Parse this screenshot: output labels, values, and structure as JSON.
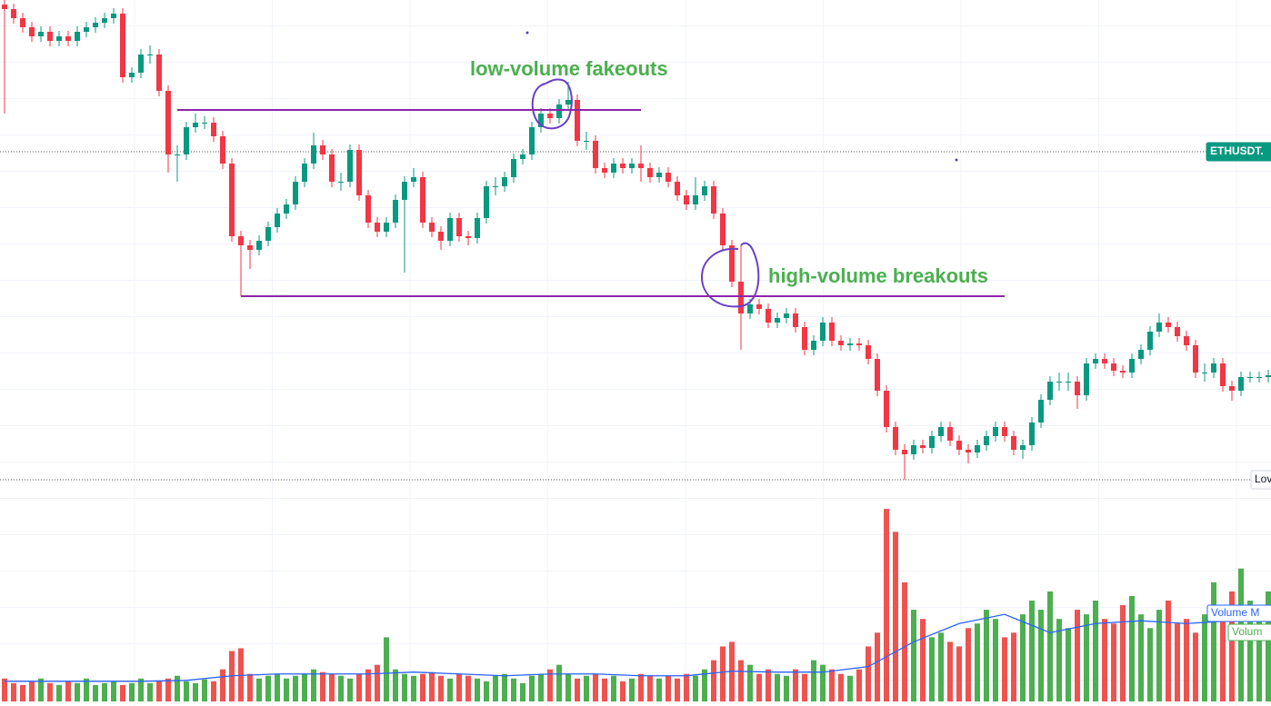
{
  "chart_data": {
    "type": "candlestick",
    "ylim": [
      0,
      540
    ],
    "up_color": "#089981",
    "down_color": "#f23645",
    "open": [
      535,
      530,
      520,
      510,
      500,
      505,
      495,
      500,
      495,
      505,
      510,
      515,
      520,
      525,
      455,
      460,
      480,
      480,
      440,
      370,
      370,
      400,
      405,
      405,
      390,
      360,
      280,
      270,
      265,
      275,
      290,
      305,
      315,
      340,
      360,
      380,
      370,
      340,
      340,
      375,
      325,
      295,
      285,
      295,
      320,
      340,
      345,
      295,
      285,
      275,
      300,
      280,
      278,
      300,
      335,
      335,
      345,
      365,
      370,
      400,
      415,
      410,
      425,
      430,
      385,
      385,
      355,
      350,
      360,
      355,
      360,
      355,
      345,
      350,
      340,
      325,
      315,
      325,
      335,
      305,
      270,
      230,
      195,
      205,
      200,
      185,
      190,
      195,
      180,
      155,
      165,
      185,
      165,
      160,
      162,
      160,
      145,
      110,
      70,
      45,
      40,
      50,
      47,
      60,
      70,
      55,
      45,
      42,
      50,
      60,
      70,
      60,
      45,
      50,
      75,
      100,
      120,
      120,
      120,
      105,
      140,
      145,
      140,
      132,
      130,
      145,
      155,
      175,
      185,
      180,
      170,
      160,
      130,
      130,
      140,
      115,
      110,
      125,
      125,
      125
    ],
    "high": [
      540,
      536,
      526,
      516,
      511,
      511,
      506,
      506,
      511,
      516,
      521,
      526,
      531,
      531,
      466,
      486,
      490,
      486,
      446,
      380,
      406,
      415,
      412,
      411,
      396,
      366,
      286,
      276,
      281,
      296,
      311,
      321,
      346,
      366,
      394,
      386,
      376,
      350,
      381,
      381,
      331,
      301,
      301,
      326,
      346,
      355,
      351,
      301,
      291,
      306,
      306,
      286,
      306,
      341,
      345,
      351,
      371,
      376,
      406,
      421,
      421,
      431,
      450,
      436,
      395,
      391,
      361,
      366,
      366,
      366,
      380,
      361,
      356,
      356,
      346,
      331,
      345,
      341,
      341,
      311,
      276,
      270,
      211,
      211,
      206,
      196,
      201,
      201,
      186,
      171,
      191,
      191,
      171,
      168,
      168,
      166,
      151,
      116,
      76,
      51,
      56,
      56,
      66,
      76,
      76,
      61,
      51,
      56,
      66,
      76,
      76,
      66,
      56,
      81,
      106,
      126,
      130,
      130,
      126,
      146,
      151,
      151,
      146,
      138,
      151,
      161,
      181,
      195,
      191,
      186,
      176,
      166,
      140,
      146,
      146,
      121,
      131,
      131,
      131,
      133
    ],
    "low": [
      415,
      514,
      504,
      494,
      494,
      489,
      489,
      489,
      489,
      499,
      504,
      509,
      514,
      449,
      449,
      454,
      470,
      434,
      350,
      340,
      364,
      394,
      398,
      384,
      354,
      274,
      214,
      244,
      259,
      269,
      284,
      299,
      309,
      334,
      354,
      364,
      334,
      330,
      334,
      319,
      289,
      279,
      279,
      289,
      240,
      334,
      289,
      279,
      265,
      269,
      274,
      270,
      272,
      294,
      325,
      329,
      339,
      359,
      364,
      394,
      404,
      404,
      419,
      379,
      375,
      349,
      344,
      344,
      349,
      349,
      340,
      339,
      339,
      334,
      319,
      309,
      309,
      319,
      299,
      264,
      224,
      155,
      189,
      194,
      179,
      179,
      184,
      174,
      149,
      149,
      159,
      159,
      154,
      154,
      154,
      139,
      104,
      64,
      39,
      12,
      34,
      41,
      41,
      54,
      49,
      39,
      30,
      36,
      44,
      54,
      54,
      39,
      35,
      44,
      69,
      94,
      110,
      110,
      90,
      99,
      134,
      134,
      126,
      124,
      124,
      139,
      149,
      169,
      174,
      164,
      154,
      124,
      120,
      124,
      109,
      99,
      104,
      119,
      119,
      119
    ],
    "close": [
      530,
      520,
      510,
      500,
      505,
      495,
      500,
      495,
      505,
      510,
      515,
      520,
      525,
      455,
      460,
      480,
      480,
      440,
      370,
      370,
      400,
      405,
      405,
      390,
      360,
      280,
      270,
      265,
      275,
      290,
      305,
      315,
      340,
      360,
      380,
      370,
      340,
      340,
      375,
      325,
      295,
      285,
      295,
      320,
      340,
      345,
      295,
      285,
      275,
      300,
      280,
      278,
      300,
      335,
      335,
      345,
      365,
      370,
      400,
      415,
      410,
      425,
      430,
      385,
      385,
      355,
      350,
      360,
      355,
      360,
      355,
      345,
      350,
      340,
      325,
      315,
      325,
      335,
      305,
      270,
      230,
      195,
      205,
      200,
      185,
      190,
      195,
      180,
      155,
      165,
      185,
      165,
      160,
      162,
      160,
      145,
      110,
      70,
      45,
      40,
      50,
      47,
      60,
      70,
      55,
      45,
      42,
      50,
      60,
      70,
      60,
      45,
      50,
      75,
      100,
      120,
      120,
      120,
      105,
      140,
      145,
      140,
      132,
      130,
      145,
      155,
      175,
      185,
      180,
      170,
      160,
      130,
      130,
      140,
      115,
      110,
      125,
      125,
      125,
      127
    ],
    "volume": {
      "ylim": [
        0,
        220
      ],
      "up_color": "#4caf50",
      "down_color": "#ef5350",
      "values": [
        25,
        20,
        18,
        22,
        25,
        20,
        18,
        22,
        20,
        25,
        18,
        20,
        22,
        18,
        20,
        25,
        20,
        22,
        25,
        28,
        22,
        20,
        24,
        22,
        35,
        55,
        58,
        30,
        25,
        28,
        30,
        25,
        28,
        30,
        35,
        32,
        30,
        28,
        25,
        30,
        35,
        40,
        70,
        35,
        30,
        28,
        30,
        32,
        28,
        25,
        30,
        28,
        25,
        22,
        28,
        30,
        25,
        20,
        28,
        30,
        35,
        40,
        30,
        25,
        28,
        30,
        25,
        28,
        22,
        25,
        30,
        28,
        25,
        28,
        25,
        30,
        28,
        35,
        45,
        60,
        65,
        45,
        40,
        30,
        35,
        30,
        28,
        35,
        30,
        45,
        40,
        35,
        30,
        28,
        35,
        60,
        75,
        210,
        185,
        130,
        100,
        90,
        70,
        75,
        65,
        60,
        80,
        85,
        100,
        90,
        70,
        75,
        95,
        110,
        100,
        120,
        90,
        80,
        100,
        95,
        110,
        90,
        85,
        105,
        115,
        95,
        80,
        100,
        110,
        85,
        90,
        75,
        95,
        130,
        100,
        120,
        145,
        110,
        95,
        120
      ]
    },
    "volume_ma": {
      "color": "#2962ff",
      "index": [
        0,
        5,
        10,
        15,
        20,
        25,
        30,
        35,
        40,
        45,
        50,
        55,
        60,
        65,
        70,
        75,
        80,
        85,
        90,
        95,
        100,
        105,
        110,
        115,
        120,
        125,
        130,
        135,
        139
      ],
      "values": [
        22,
        22,
        22,
        22,
        23,
        28,
        30,
        30,
        30,
        32,
        30,
        28,
        30,
        30,
        28,
        28,
        33,
        32,
        32,
        38,
        65,
        85,
        95,
        75,
        85,
        88,
        85,
        88,
        95
      ]
    },
    "levels": [
      {
        "value": 419,
        "from": 19,
        "to": 70
      },
      {
        "value": 214,
        "from": 26,
        "to": 110
      }
    ],
    "price_lines": [
      {
        "value": 373,
        "label": "ETHUSDT."
      },
      {
        "value": 12,
        "label": "Lov"
      }
    ],
    "annotations": [
      "low-volume fakeouts",
      "high-volume breakouts"
    ],
    "legend": [
      "Volume M",
      "Volum"
    ]
  }
}
